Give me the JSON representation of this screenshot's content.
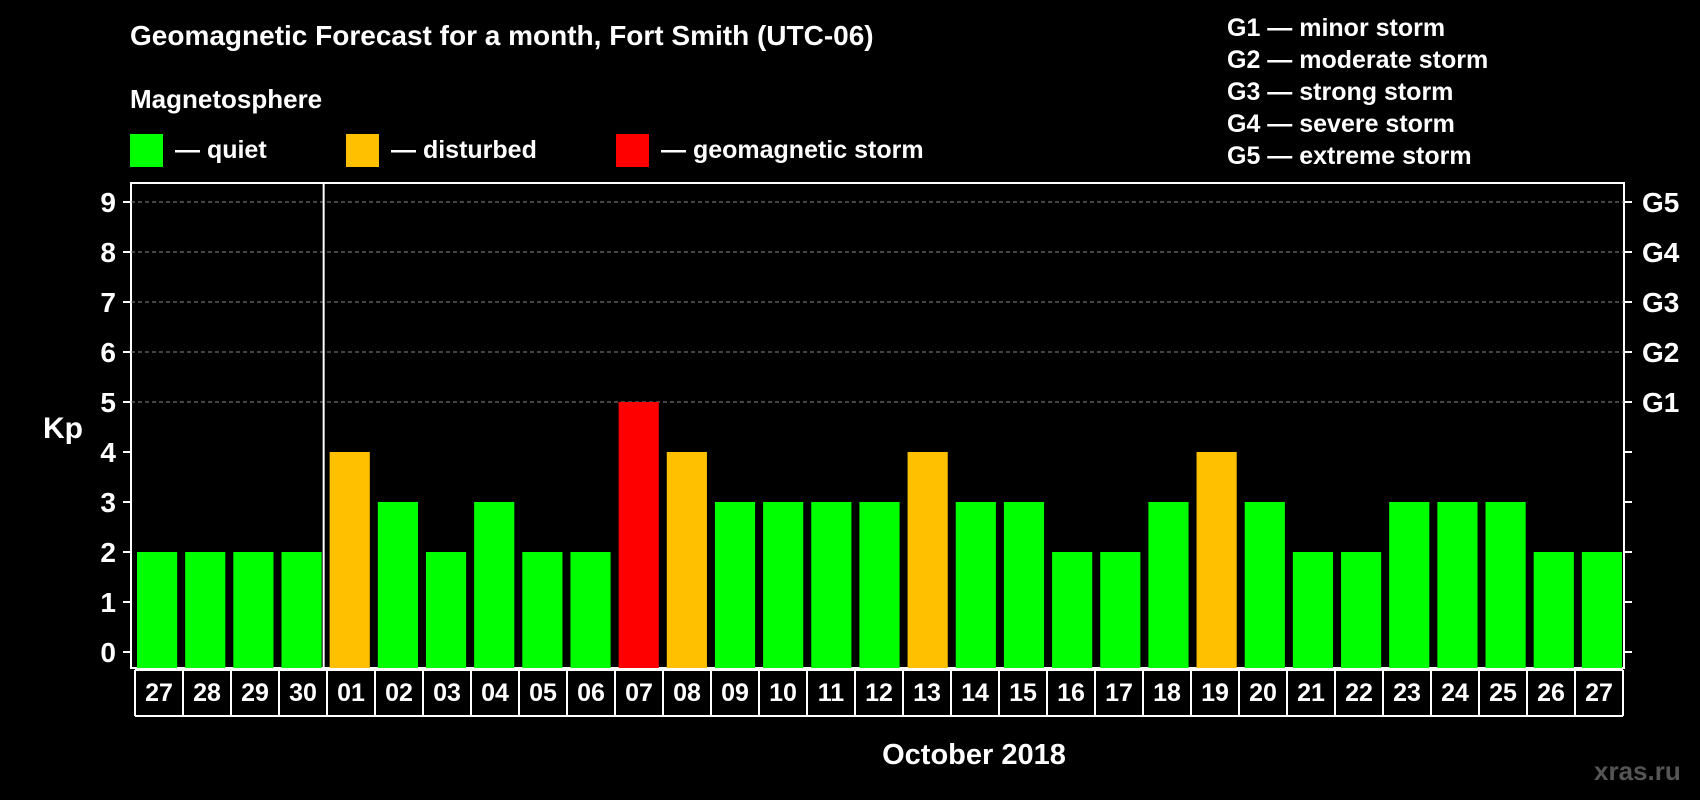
{
  "header": {
    "title": "Geomagnetic Forecast for a month, Fort Smith (UTC-06)",
    "subtitle": "Magnetosphere"
  },
  "legend": [
    {
      "label": "— quiet",
      "color": "#00ff00"
    },
    {
      "label": "— disturbed",
      "color": "#ffc000"
    },
    {
      "label": "— geomagnetic storm",
      "color": "#ff0000"
    }
  ],
  "g_scale": [
    "G1 — minor storm",
    "G2 — moderate storm",
    "G3 — strong storm",
    "G4 — severe storm",
    "G5 — extreme storm"
  ],
  "watermark": "xras.ru",
  "chart_data": {
    "type": "bar",
    "title": "Geomagnetic Forecast for a month, Fort Smith (UTC-06)",
    "ylabel": "Kp",
    "xlabel": "October 2018",
    "ylim": [
      0,
      9
    ],
    "yticks": [
      0,
      1,
      2,
      3,
      4,
      5,
      6,
      7,
      8,
      9
    ],
    "right_ticks": [
      {
        "value": 5,
        "label": "G1"
      },
      {
        "value": 6,
        "label": "G2"
      },
      {
        "value": 7,
        "label": "G3"
      },
      {
        "value": 8,
        "label": "G4"
      },
      {
        "value": 9,
        "label": "G5"
      }
    ],
    "grid": "dashed horizontal lines at Kp 5 to 9",
    "month_divider_after": "30",
    "categories": [
      "27",
      "28",
      "29",
      "30",
      "01",
      "02",
      "03",
      "04",
      "05",
      "06",
      "07",
      "08",
      "09",
      "10",
      "11",
      "12",
      "13",
      "14",
      "15",
      "16",
      "17",
      "18",
      "19",
      "20",
      "21",
      "22",
      "23",
      "24",
      "25",
      "26",
      "27"
    ],
    "values": [
      2,
      2,
      2,
      2,
      4,
      3,
      2,
      3,
      2,
      2,
      5,
      4,
      3,
      3,
      3,
      3,
      4,
      3,
      3,
      2,
      2,
      3,
      4,
      3,
      2,
      2,
      3,
      3,
      3,
      2,
      2
    ],
    "colors": {
      "quiet": "#00ff00",
      "disturbed": "#ffc000",
      "storm": "#ff0000"
    }
  }
}
